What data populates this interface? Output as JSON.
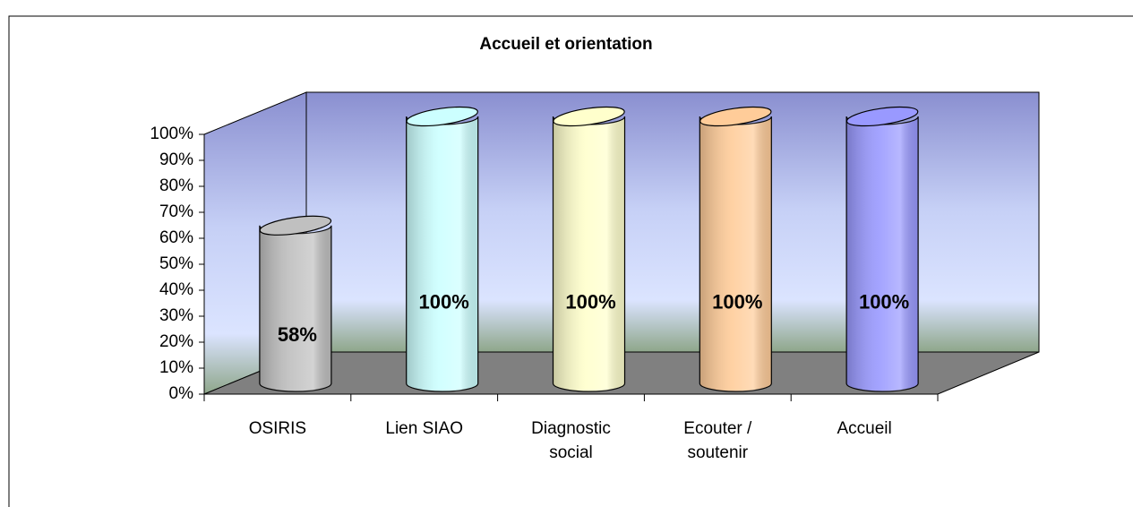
{
  "chart_data": {
    "type": "bar3d",
    "title": "Accueil et orientation",
    "categories": [
      "OSIRIS",
      "Lien SIAO",
      "Diagnostic social",
      "Ecouter / soutenir",
      "Accueil"
    ],
    "values": [
      58,
      100,
      100,
      100,
      100
    ],
    "value_labels": [
      "58%",
      "100%",
      "100%",
      "100%",
      "100%"
    ],
    "colors": [
      "#c0c0c0",
      "#ccffff",
      "#ffffcc",
      "#ffcc99",
      "#9999ff"
    ],
    "ylim": [
      0,
      100
    ],
    "yticks": [
      {
        "value": 0,
        "label": "0%"
      },
      {
        "value": 10,
        "label": "10%"
      },
      {
        "value": 20,
        "label": "20%"
      },
      {
        "value": 30,
        "label": "30%"
      },
      {
        "value": 40,
        "label": "40%"
      },
      {
        "value": 50,
        "label": "50%"
      },
      {
        "value": 60,
        "label": "60%"
      },
      {
        "value": 70,
        "label": "70%"
      },
      {
        "value": 80,
        "label": "80%"
      },
      {
        "value": 90,
        "label": "90%"
      },
      {
        "value": 100,
        "label": "100%"
      }
    ]
  }
}
